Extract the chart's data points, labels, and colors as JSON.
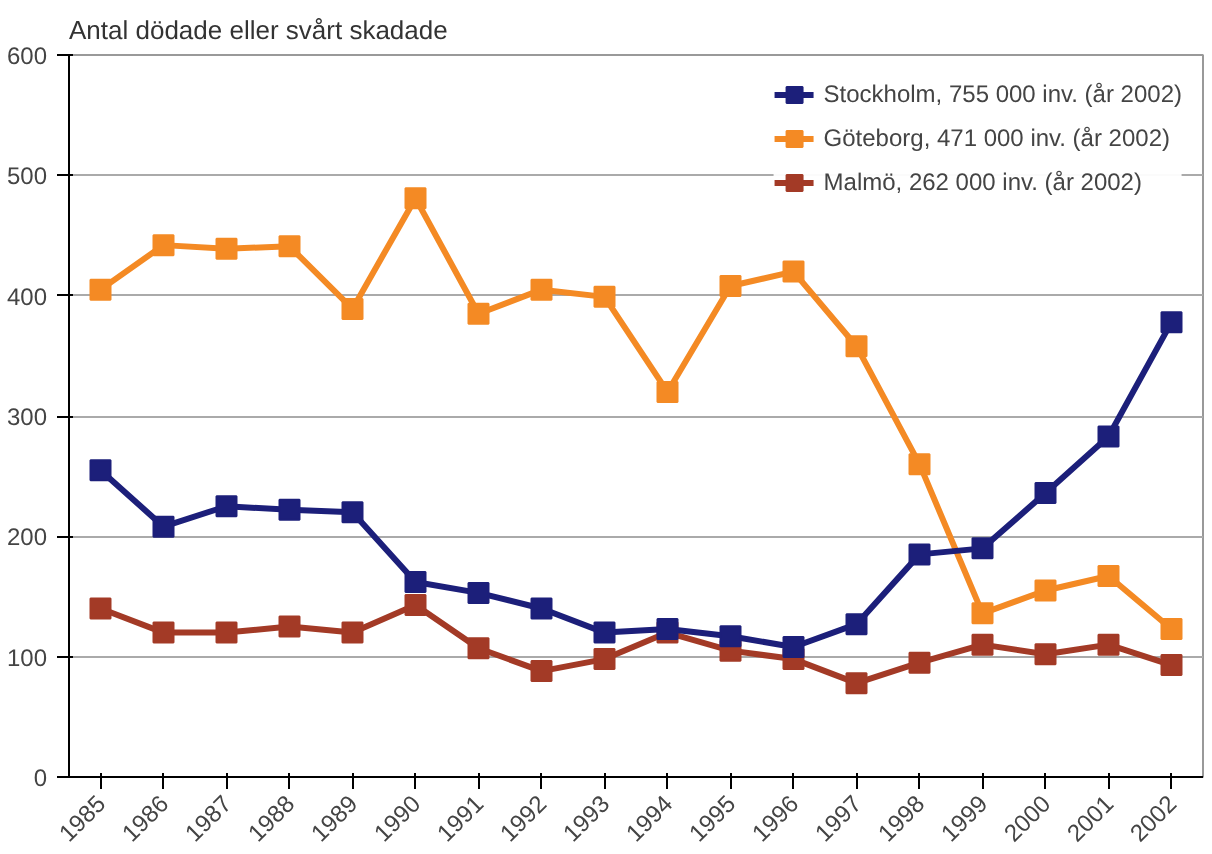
{
  "chart_data": {
    "type": "line",
    "title": "Antal dödade eller svårt skadade",
    "categories": [
      "1985",
      "1986",
      "1987",
      "1988",
      "1989",
      "1990",
      "1991",
      "1992",
      "1993",
      "1994",
      "1995",
      "1996",
      "1997",
      "1998",
      "1999",
      "2000",
      "2001",
      "2002"
    ],
    "series": [
      {
        "name": "Stockholm, 755 000 inv. (år 2002)",
        "color": "#1c1f7a",
        "values": [
          255,
          208,
          225,
          222,
          220,
          162,
          153,
          140,
          120,
          123,
          117,
          108,
          127,
          185,
          190,
          236,
          283,
          378
        ]
      },
      {
        "name": "Göteborg, 471 000 inv. (år 2002)",
        "color": "#f48a24",
        "values": [
          405,
          442,
          439,
          441,
          389,
          481,
          385,
          405,
          399,
          320,
          408,
          420,
          358,
          260,
          136,
          155,
          167,
          123
        ]
      },
      {
        "name": "Malmö, 262 000 inv. (år 2002)",
        "color": "#a33a26",
        "values": [
          140,
          120,
          120,
          125,
          120,
          143,
          107,
          88,
          98,
          120,
          105,
          98,
          78,
          95,
          110,
          102,
          110,
          93
        ]
      }
    ],
    "ylim": [
      0,
      600
    ],
    "yticks": [
      0,
      100,
      200,
      300,
      400,
      500,
      600
    ],
    "grid": "y",
    "legend": "top right",
    "marker": "square",
    "line_style": "solid"
  }
}
